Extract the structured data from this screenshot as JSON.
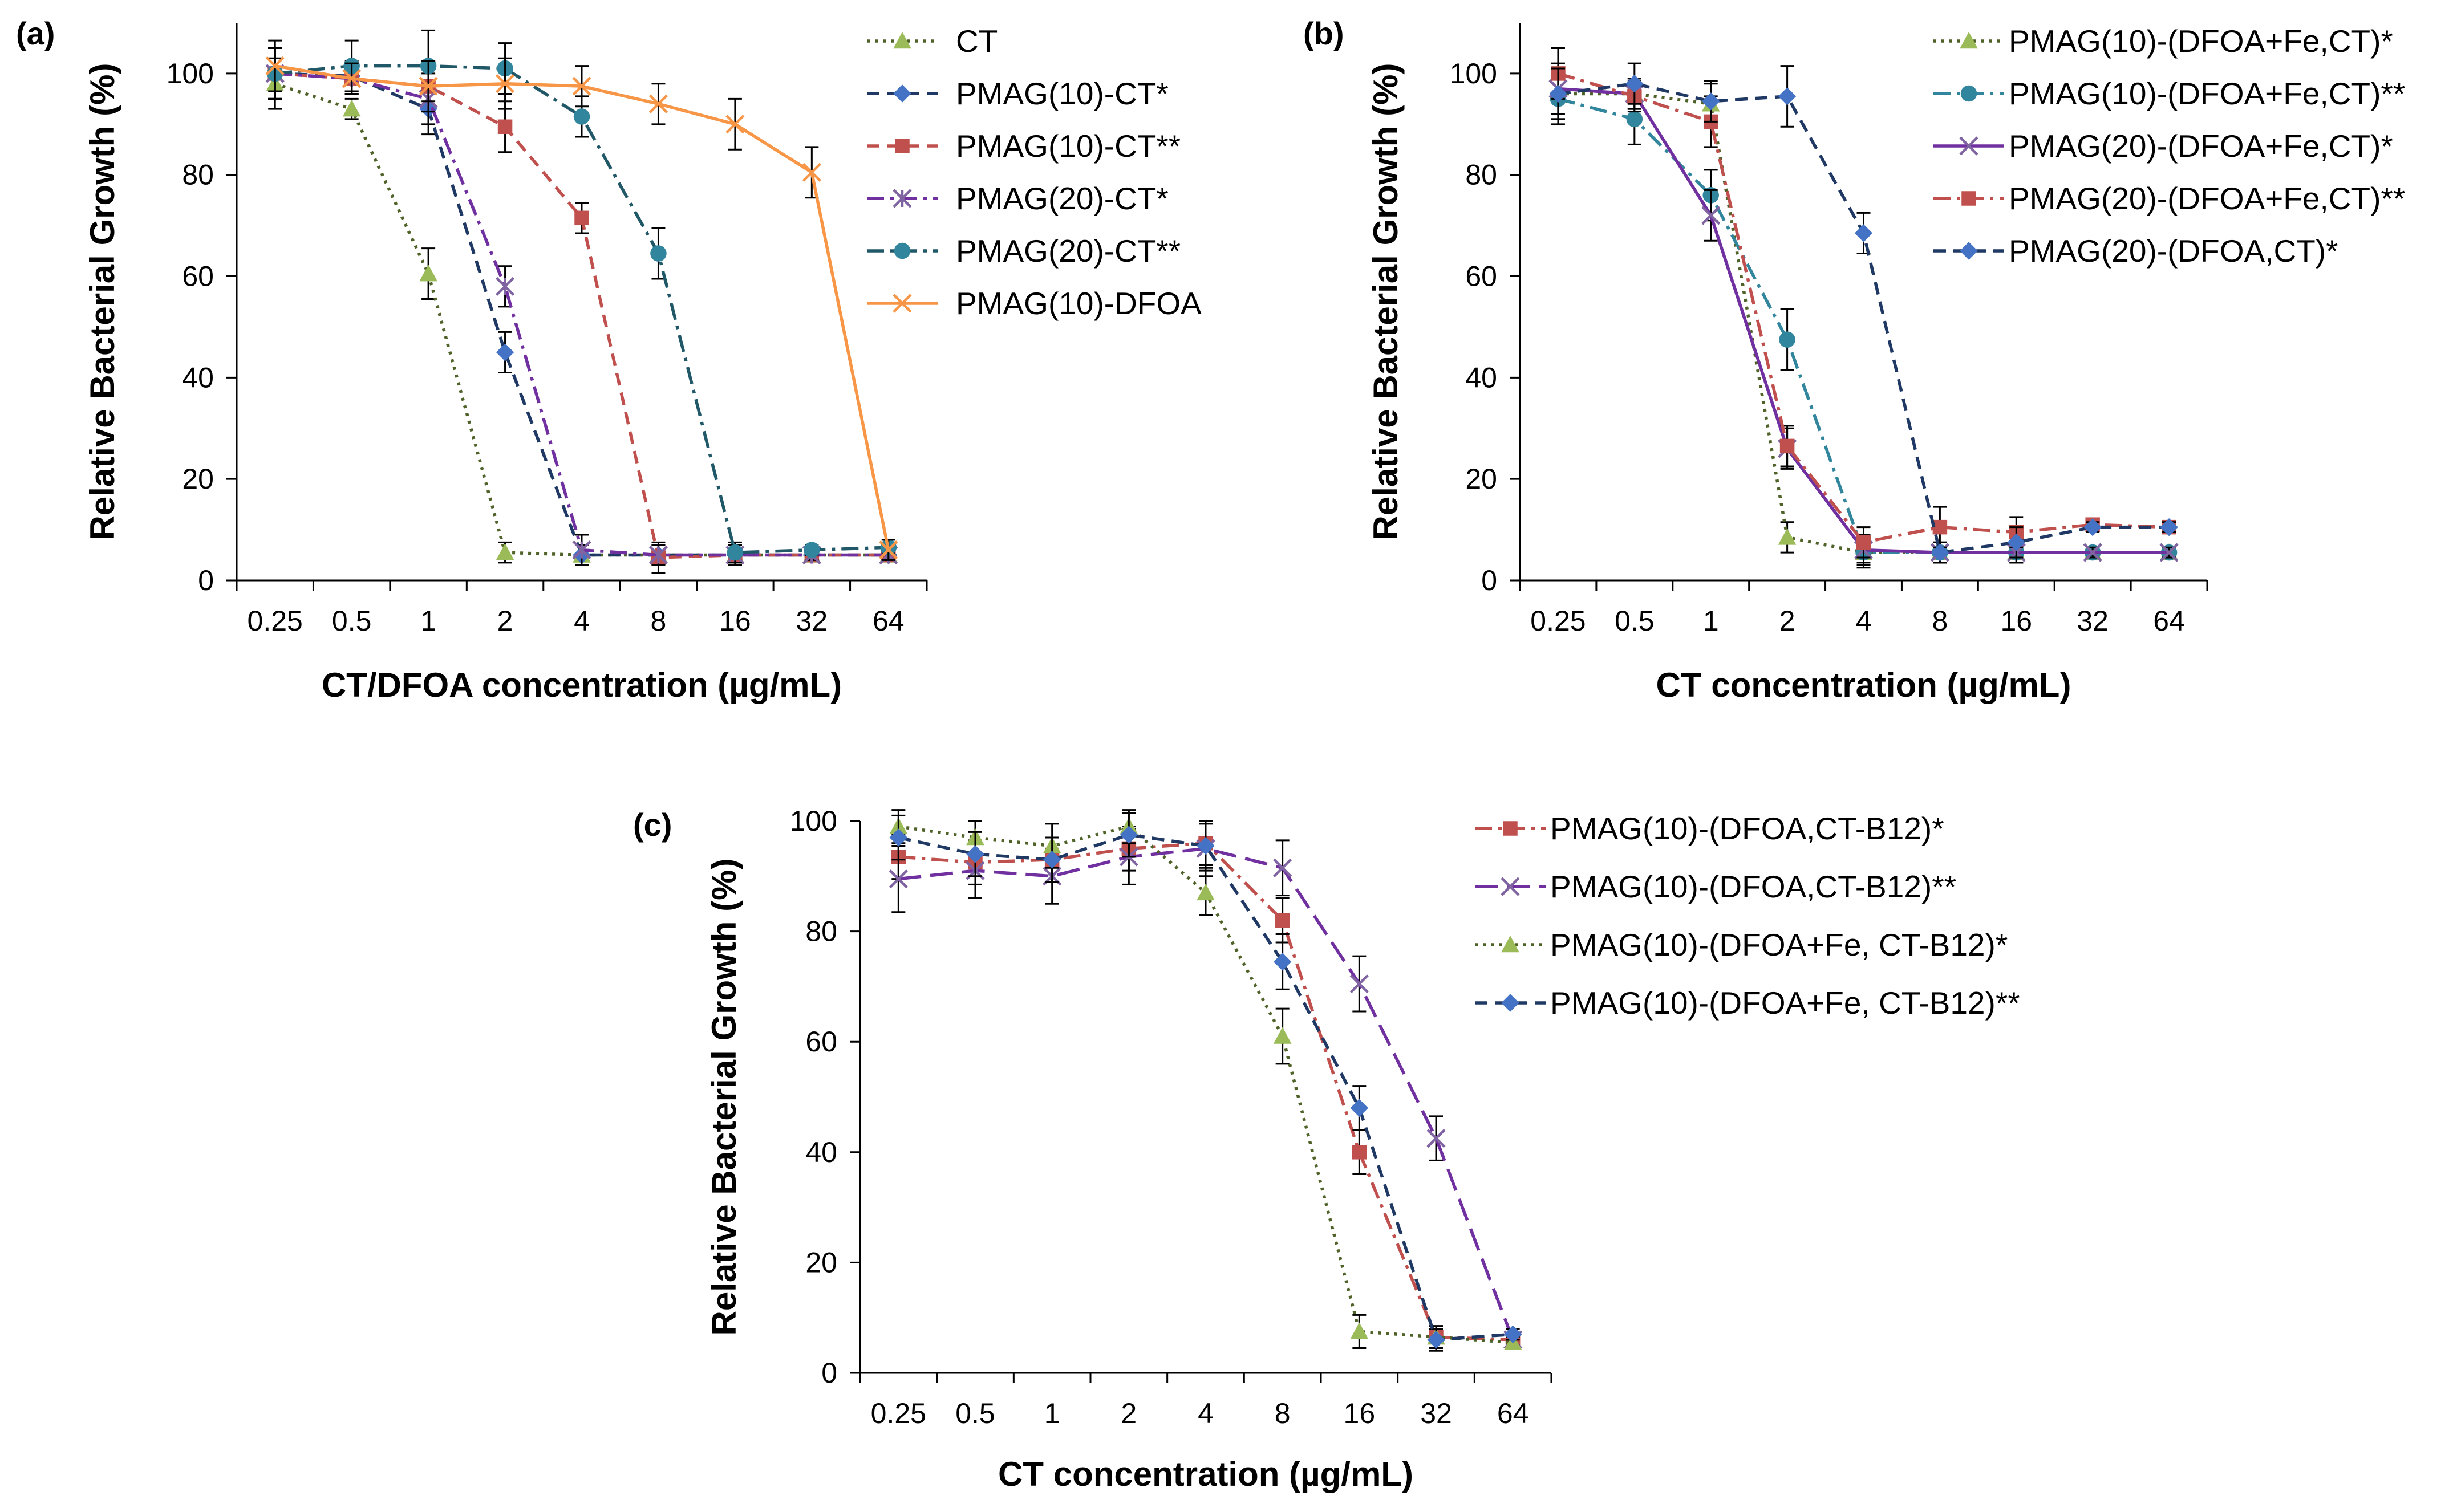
{
  "chart_data": [
    {
      "type": "line",
      "panel_label": "(a)",
      "xlabel": "CT/DFOA concentration (µg/mL)",
      "ylabel": "Relative Bacterial Growth (%)",
      "categories": [
        "0.25",
        "0.5",
        "1",
        "2",
        "4",
        "8",
        "16",
        "32",
        "64"
      ],
      "ylim": [
        0,
        110
      ],
      "yticks": [
        "0",
        "20",
        "40",
        "60",
        "80",
        "100"
      ],
      "grid": false,
      "legend_position": "right",
      "series": [
        {
          "name": "CT",
          "color": "#4f6228",
          "marker_color": "#9bbb59",
          "marker": "triangle",
          "dash": "dot",
          "values": [
            98,
            93,
            60.5,
            5.5,
            5,
            5,
            5,
            5,
            5
          ],
          "errors": [
            5,
            2,
            5,
            2,
            2,
            2,
            2,
            1,
            1
          ]
        },
        {
          "name": "PMAG(10)-CT*",
          "color": "#1f3864",
          "marker_color": "#4472c4",
          "marker": "diamond",
          "dash": "dash",
          "values": [
            100,
            99.5,
            93,
            45,
            5,
            5,
            5,
            5,
            5
          ],
          "errors": [
            5,
            3,
            5,
            4,
            2,
            2,
            2,
            1,
            1
          ]
        },
        {
          "name": "PMAG(10)-CT**",
          "color": "#c0504d",
          "marker_color": "#c0504d",
          "marker": "square",
          "dash": "dash",
          "values": [
            100,
            99,
            97.5,
            89.5,
            71.5,
            4.5,
            5,
            5,
            5
          ],
          "errors": [
            5,
            3,
            5,
            5,
            3,
            3,
            2,
            1,
            1
          ]
        },
        {
          "name": "PMAG(20)-CT*",
          "color": "#7030a0",
          "marker_color": "#8064a2",
          "marker": "star",
          "dash": "dashdot",
          "values": [
            100,
            99,
            95,
            58,
            6,
            5,
            5,
            5,
            5
          ],
          "errors": [
            5,
            3,
            5,
            4,
            3,
            2,
            2,
            1,
            1
          ]
        },
        {
          "name": "PMAG(20)-CT**",
          "color": "#215868",
          "marker_color": "#31859c",
          "marker": "circle",
          "dash": "dashdot",
          "values": [
            100,
            101.5,
            101.5,
            101,
            91.5,
            64.5,
            5.5,
            6,
            6.5
          ],
          "errors": [
            5,
            5,
            7,
            5,
            4,
            5,
            2,
            1,
            1
          ]
        },
        {
          "name": "PMAG(10)-DFOA",
          "color": "#f79646",
          "marker_color": "#f79646",
          "marker": "x",
          "dash": "solid",
          "values": [
            101.5,
            99,
            97.5,
            98,
            97.5,
            94,
            90,
            80.5,
            6
          ],
          "errors": [
            5,
            3,
            5,
            5,
            4,
            4,
            5,
            5,
            2
          ]
        }
      ]
    },
    {
      "type": "line",
      "panel_label": "(b)",
      "xlabel": "CT concentration (µg/mL)",
      "ylabel": "Relative Bacterial Growth (%)",
      "categories": [
        "0.25",
        "0.5",
        "1",
        "2",
        "4",
        "8",
        "16",
        "32",
        "64"
      ],
      "ylim": [
        0,
        110
      ],
      "yticks": [
        "0",
        "20",
        "40",
        "60",
        "80",
        "100"
      ],
      "grid": false,
      "legend_position": "right",
      "series": [
        {
          "name": "PMAG(10)-(DFOA+Fe,CT)*",
          "color": "#4f6228",
          "marker_color": "#9bbb59",
          "marker": "triangle",
          "dash": "dot",
          "values": [
            96,
            96,
            94,
            8.5,
            5.5,
            5.5,
            5.5,
            5.5,
            5.5
          ],
          "errors": [
            5,
            3,
            4,
            3,
            2,
            2,
            1,
            1,
            1
          ]
        },
        {
          "name": "PMAG(10)-(DFOA+Fe,CT)**",
          "color": "#31859c",
          "marker_color": "#31859c",
          "marker": "circle",
          "dash": "dashdot",
          "values": [
            95,
            91,
            76,
            47.5,
            5.5,
            5.5,
            5.5,
            5.5,
            5.5
          ],
          "errors": [
            5,
            5,
            5,
            6,
            3,
            2,
            2,
            1,
            1
          ]
        },
        {
          "name": "PMAG(20)-(DFOA+Fe,CT)*",
          "color": "#7030a0",
          "marker_color": "#8064a2",
          "marker": "x",
          "dash": "solid",
          "values": [
            97,
            96,
            72,
            26,
            6,
            5.5,
            5.5,
            5.5,
            5.5
          ],
          "errors": [
            5,
            3,
            5,
            4,
            3,
            2,
            2,
            1,
            1
          ]
        },
        {
          "name": "PMAG(20)-(DFOA+Fe,CT)**",
          "color": "#c0504d",
          "marker_color": "#c0504d",
          "marker": "square",
          "dash": "dashdot",
          "values": [
            100,
            95.5,
            90.5,
            26.5,
            7.5,
            10.5,
            9.5,
            11,
            10.5
          ],
          "errors": [
            5,
            3,
            5,
            4,
            3,
            4,
            3,
            1,
            1
          ]
        },
        {
          "name": "PMAG(20)-(DFOA,CT)*",
          "color": "#1f3864",
          "marker_color": "#4472c4",
          "marker": "diamond",
          "dash": "dash",
          "values": [
            96,
            98,
            94.5,
            95.5,
            68.5,
            5.5,
            7.5,
            10.5,
            10.5
          ],
          "errors": [
            5,
            4,
            4,
            6,
            4,
            2,
            3,
            1,
            1
          ]
        }
      ]
    },
    {
      "type": "line",
      "panel_label": "(c)",
      "xlabel": "CT concentration (µg/mL)",
      "ylabel": "Relative Bacterial Growth (%)",
      "categories": [
        "0.25",
        "0.5",
        "1",
        "2",
        "4",
        "8",
        "16",
        "32",
        "64"
      ],
      "ylim": [
        0,
        100
      ],
      "yticks": [
        "0",
        "20",
        "40",
        "60",
        "80",
        "100"
      ],
      "grid": false,
      "legend_position": "right",
      "series": [
        {
          "name": "PMAG(10)-(DFOA,CT-B12)*",
          "color": "#c0504d",
          "marker_color": "#c0504d",
          "marker": "square",
          "dash": "dashdot",
          "values": [
            93.5,
            92.5,
            93,
            95,
            96,
            82,
            40,
            6.5,
            6
          ],
          "errors": [
            4,
            4,
            4,
            4,
            4,
            4,
            4,
            2,
            1
          ]
        },
        {
          "name": "PMAG(10)-(DFOA,CT-B12)**",
          "color": "#7030a0",
          "marker_color": "#8064a2",
          "marker": "x",
          "dash": "longdash",
          "values": [
            89.5,
            91,
            90,
            93.5,
            95,
            91.5,
            70.5,
            42.5,
            6
          ],
          "errors": [
            6,
            5,
            5,
            5,
            5,
            5,
            5,
            4,
            1
          ]
        },
        {
          "name": "PMAG(10)-(DFOA+Fe, CT-B12)*",
          "color": "#4f6228",
          "marker_color": "#9bbb59",
          "marker": "triangle",
          "dash": "dot",
          "values": [
            99,
            97,
            95.5,
            99,
            87,
            61,
            7.5,
            6.5,
            5.5
          ],
          "errors": [
            3,
            3,
            4,
            3,
            4,
            5,
            3,
            2,
            1
          ]
        },
        {
          "name": "PMAG(10)-(DFOA+Fe, CT-B12)**",
          "color": "#1f3864",
          "marker_color": "#4472c4",
          "marker": "diamond",
          "dash": "dash",
          "values": [
            97,
            94,
            93,
            97.5,
            95.5,
            74.5,
            48,
            6,
            7
          ],
          "errors": [
            4,
            4,
            4,
            4,
            4,
            5,
            4,
            2,
            1
          ]
        }
      ]
    }
  ]
}
